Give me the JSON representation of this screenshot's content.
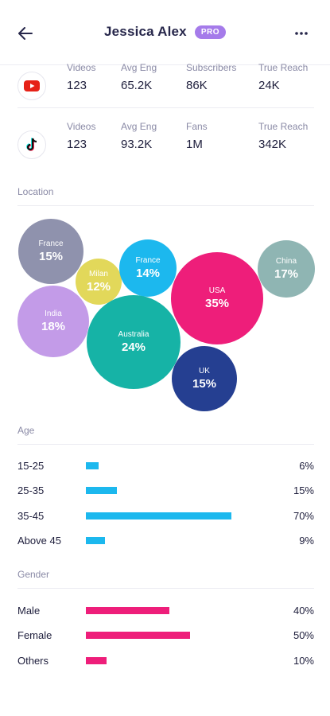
{
  "header": {
    "title": "Jessica Alex",
    "badge": "PRO"
  },
  "platforms": [
    {
      "name": "youtube",
      "icon": "youtube-icon",
      "stats": [
        {
          "label": "Videos",
          "value": "123"
        },
        {
          "label": "Avg Eng",
          "value": "65.2K"
        },
        {
          "label": "Subscribers",
          "value": "86K"
        },
        {
          "label": "True Reach",
          "value": "24K"
        }
      ]
    },
    {
      "name": "tiktok",
      "icon": "tiktok-icon",
      "stats": [
        {
          "label": "Videos",
          "value": "123"
        },
        {
          "label": "Avg Eng",
          "value": "93.2K"
        },
        {
          "label": "Fans",
          "value": "1M"
        },
        {
          "label": "True Reach",
          "value": "342K"
        }
      ]
    }
  ],
  "location": {
    "title": "Location",
    "bubbles": [
      {
        "name": "France",
        "pct": "15%",
        "color": "#8f92ad"
      },
      {
        "name": "Milan",
        "pct": "12%",
        "color": "#e2d85a"
      },
      {
        "name": "France",
        "pct": "14%",
        "color": "#1cb8ee"
      },
      {
        "name": "USA",
        "pct": "35%",
        "color": "#ee1e7a"
      },
      {
        "name": "China",
        "pct": "17%",
        "color": "#8fb5b3"
      },
      {
        "name": "India",
        "pct": "18%",
        "color": "#c39be8"
      },
      {
        "name": "Australia",
        "pct": "24%",
        "color": "#16b3a6"
      },
      {
        "name": "UK",
        "pct": "15%",
        "color": "#253f91"
      }
    ]
  },
  "age": {
    "title": "Age",
    "rows": [
      {
        "label": "15-25",
        "value": 6,
        "display": "6%"
      },
      {
        "label": "25-35",
        "value": 15,
        "display": "15%"
      },
      {
        "label": "35-45",
        "value": 70,
        "display": "70%"
      },
      {
        "label": "Above 45",
        "value": 9,
        "display": "9%"
      }
    ]
  },
  "gender": {
    "title": "Gender",
    "rows": [
      {
        "label": "Male",
        "value": 40,
        "display": "40%"
      },
      {
        "label": "Female",
        "value": 50,
        "display": "50%"
      },
      {
        "label": "Others",
        "value": 10,
        "display": "10%"
      }
    ]
  },
  "colors": {
    "age_bar": "#1cb8ee",
    "gender_bar": "#ee1e7a",
    "badge": "#a57bea"
  }
}
